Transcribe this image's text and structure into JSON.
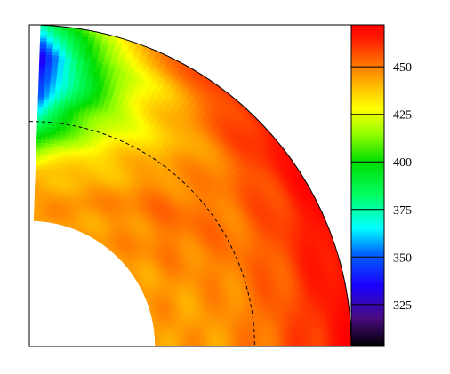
{
  "chart_data": {
    "type": "heatmap",
    "title": "",
    "xlabel": "",
    "ylabel": "",
    "description": "quarter-disk contour map (polar sector)",
    "colorbar": {
      "range": [
        303,
        472
      ],
      "ticks": [
        325,
        350,
        375,
        400,
        425,
        450
      ],
      "tick_labels": [
        "325",
        "350",
        "375",
        "400",
        "425",
        "450"
      ],
      "colormap": [
        [
          303,
          "#000000"
        ],
        [
          318,
          "#4a0c80"
        ],
        [
          335,
          "#1a00ff"
        ],
        [
          352,
          "#0066ff"
        ],
        [
          365,
          "#00ffff"
        ],
        [
          382,
          "#00ff66"
        ],
        [
          400,
          "#00dd00"
        ],
        [
          415,
          "#99ff00"
        ],
        [
          428,
          "#ffff00"
        ],
        [
          440,
          "#ffbb00"
        ],
        [
          452,
          "#ff7000"
        ],
        [
          465,
          "#ff1a00"
        ],
        [
          472,
          "#ff0000"
        ]
      ]
    },
    "dashed_contour_fraction": 0.7,
    "inner_radius_fraction": 0.39,
    "angular_profile_zones": [
      {
        "zone": "outer shell",
        "value": 468
      },
      {
        "zone": "middle shell",
        "value": 445
      },
      {
        "zone": "inner shell near pole",
        "value": 340
      },
      {
        "zone": "inner shell near equator",
        "value": 440
      }
    ]
  }
}
